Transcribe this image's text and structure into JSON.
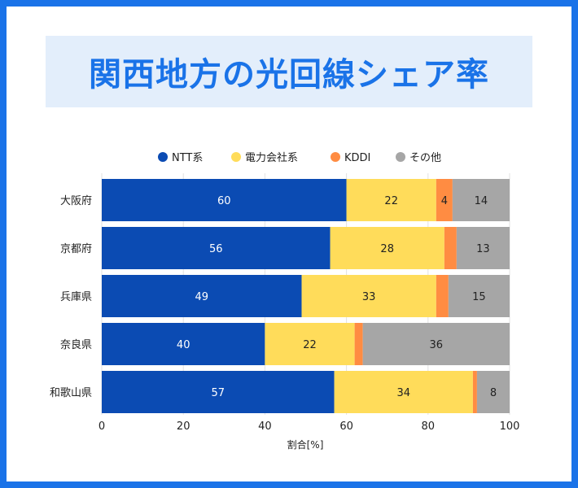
{
  "title": "関西地方の光回線シェア率",
  "chart_data": {
    "type": "bar",
    "orientation": "horizontal",
    "stacked": true,
    "categories": [
      "大阪府",
      "京都府",
      "兵庫県",
      "奈良県",
      "和歌山県"
    ],
    "series": [
      {
        "name": "NTT系",
        "color": "#0b4bb3",
        "label_color": "#ffffff",
        "values": [
          60,
          56,
          49,
          40,
          57
        ],
        "labels": [
          "60",
          "56",
          "49",
          "40",
          "57"
        ]
      },
      {
        "name": "電力会社系",
        "color": "#ffdc5a",
        "label_color": "#222222",
        "values": [
          22,
          28,
          33,
          22,
          34
        ],
        "labels": [
          "22",
          "28",
          "33",
          "22",
          "34"
        ]
      },
      {
        "name": "KDDI",
        "color": "#ff8c42",
        "label_color": "#222222",
        "values": [
          4,
          3,
          3,
          2,
          1
        ],
        "labels": [
          "4",
          "",
          "",
          "",
          ""
        ]
      },
      {
        "name": "その他",
        "color": "#a6a6a6",
        "label_color": "#222222",
        "values": [
          14,
          13,
          15,
          36,
          8
        ],
        "labels": [
          "14",
          "13",
          "15",
          "36",
          "8"
        ]
      }
    ],
    "xlabel": "割合[%]",
    "xlim": [
      0,
      100
    ],
    "xticks": [
      0,
      20,
      40,
      60,
      80,
      100
    ],
    "xtick_labels": [
      "0",
      "20",
      "40",
      "60",
      "80",
      "100"
    ],
    "grid": true,
    "legend_position": "top"
  }
}
